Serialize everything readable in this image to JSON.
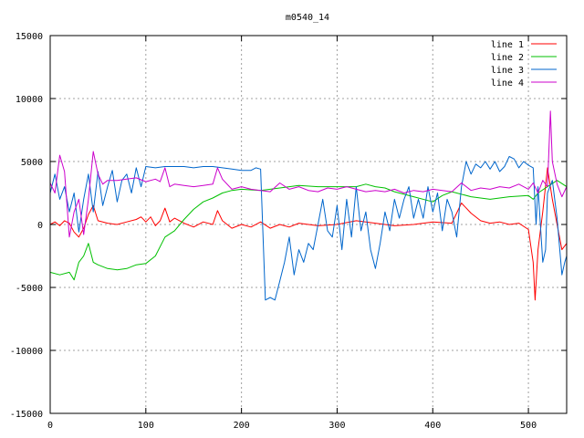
{
  "chart_data": {
    "type": "line",
    "title": "m0540_14",
    "xlim": [
      0,
      540
    ],
    "ylim": [
      -15000,
      15000
    ],
    "x_ticks": [
      0,
      100,
      200,
      300,
      400,
      500
    ],
    "y_ticks": [
      -15000,
      -10000,
      -5000,
      0,
      5000,
      10000,
      15000
    ],
    "grid": true,
    "legend_position": "top-right",
    "series": [
      {
        "name": "line 1",
        "color": "#ff0000",
        "points": [
          [
            0,
            0
          ],
          [
            5,
            200
          ],
          [
            10,
            -100
          ],
          [
            15,
            300
          ],
          [
            20,
            100
          ],
          [
            25,
            -600
          ],
          [
            30,
            -1000
          ],
          [
            35,
            -300
          ],
          [
            40,
            800
          ],
          [
            45,
            1500
          ],
          [
            50,
            300
          ],
          [
            60,
            100
          ],
          [
            70,
            0
          ],
          [
            80,
            200
          ],
          [
            90,
            400
          ],
          [
            95,
            600
          ],
          [
            100,
            200
          ],
          [
            105,
            600
          ],
          [
            110,
            -100
          ],
          [
            115,
            300
          ],
          [
            120,
            1300
          ],
          [
            125,
            200
          ],
          [
            130,
            500
          ],
          [
            140,
            100
          ],
          [
            150,
            -200
          ],
          [
            160,
            200
          ],
          [
            170,
            0
          ],
          [
            175,
            1100
          ],
          [
            180,
            300
          ],
          [
            190,
            -300
          ],
          [
            200,
            0
          ],
          [
            210,
            -200
          ],
          [
            220,
            200
          ],
          [
            230,
            -300
          ],
          [
            240,
            0
          ],
          [
            250,
            -200
          ],
          [
            260,
            100
          ],
          [
            280,
            -100
          ],
          [
            300,
            0
          ],
          [
            320,
            300
          ],
          [
            340,
            100
          ],
          [
            360,
            -100
          ],
          [
            380,
            0
          ],
          [
            400,
            200
          ],
          [
            420,
            100
          ],
          [
            430,
            1700
          ],
          [
            440,
            900
          ],
          [
            450,
            300
          ],
          [
            460,
            100
          ],
          [
            470,
            200
          ],
          [
            480,
            0
          ],
          [
            490,
            100
          ],
          [
            500,
            -400
          ],
          [
            505,
            -3000
          ],
          [
            507,
            -6000
          ],
          [
            510,
            -2000
          ],
          [
            515,
            1000
          ],
          [
            520,
            4500
          ],
          [
            525,
            2000
          ],
          [
            530,
            0
          ],
          [
            535,
            -2000
          ],
          [
            540,
            -1500
          ]
        ]
      },
      {
        "name": "line 2",
        "color": "#00c000",
        "points": [
          [
            0,
            -3800
          ],
          [
            10,
            -4000
          ],
          [
            20,
            -3800
          ],
          [
            25,
            -4400
          ],
          [
            30,
            -3000
          ],
          [
            35,
            -2500
          ],
          [
            40,
            -1500
          ],
          [
            45,
            -3000
          ],
          [
            50,
            -3200
          ],
          [
            60,
            -3500
          ],
          [
            70,
            -3600
          ],
          [
            80,
            -3500
          ],
          [
            90,
            -3200
          ],
          [
            100,
            -3100
          ],
          [
            110,
            -2500
          ],
          [
            120,
            -1000
          ],
          [
            130,
            -500
          ],
          [
            140,
            400
          ],
          [
            150,
            1200
          ],
          [
            160,
            1800
          ],
          [
            170,
            2100
          ],
          [
            180,
            2500
          ],
          [
            190,
            2700
          ],
          [
            200,
            2800
          ],
          [
            220,
            2700
          ],
          [
            240,
            2900
          ],
          [
            260,
            3100
          ],
          [
            280,
            3000
          ],
          [
            300,
            3000
          ],
          [
            320,
            3000
          ],
          [
            330,
            3200
          ],
          [
            340,
            3000
          ],
          [
            350,
            2900
          ],
          [
            360,
            2600
          ],
          [
            380,
            2200
          ],
          [
            400,
            1800
          ],
          [
            410,
            2300
          ],
          [
            420,
            2600
          ],
          [
            440,
            2200
          ],
          [
            460,
            2000
          ],
          [
            480,
            2200
          ],
          [
            500,
            2300
          ],
          [
            505,
            2000
          ],
          [
            510,
            2500
          ],
          [
            520,
            3000
          ],
          [
            530,
            3500
          ],
          [
            540,
            3000
          ]
        ]
      },
      {
        "name": "line 3",
        "color": "#0066cc",
        "points": [
          [
            0,
            2500
          ],
          [
            5,
            4000
          ],
          [
            10,
            2000
          ],
          [
            15,
            3000
          ],
          [
            20,
            1000
          ],
          [
            25,
            2500
          ],
          [
            30,
            -600
          ],
          [
            35,
            2000
          ],
          [
            40,
            4000
          ],
          [
            45,
            1000
          ],
          [
            50,
            4200
          ],
          [
            55,
            1500
          ],
          [
            60,
            3000
          ],
          [
            65,
            4300
          ],
          [
            70,
            1800
          ],
          [
            75,
            3500
          ],
          [
            80,
            4000
          ],
          [
            85,
            2500
          ],
          [
            90,
            4500
          ],
          [
            95,
            3000
          ],
          [
            100,
            4600
          ],
          [
            110,
            4500
          ],
          [
            120,
            4600
          ],
          [
            130,
            4600
          ],
          [
            140,
            4600
          ],
          [
            150,
            4500
          ],
          [
            160,
            4600
          ],
          [
            170,
            4600
          ],
          [
            180,
            4500
          ],
          [
            190,
            4400
          ],
          [
            200,
            4300
          ],
          [
            210,
            4300
          ],
          [
            215,
            4500
          ],
          [
            220,
            4400
          ],
          [
            225,
            -6000
          ],
          [
            230,
            -5800
          ],
          [
            235,
            -6000
          ],
          [
            240,
            -4500
          ],
          [
            245,
            -3000
          ],
          [
            250,
            -1000
          ],
          [
            255,
            -4000
          ],
          [
            260,
            -2000
          ],
          [
            265,
            -3000
          ],
          [
            270,
            -1500
          ],
          [
            275,
            -2000
          ],
          [
            280,
            0
          ],
          [
            285,
            2000
          ],
          [
            290,
            -500
          ],
          [
            295,
            -1000
          ],
          [
            300,
            1500
          ],
          [
            305,
            -2000
          ],
          [
            310,
            2000
          ],
          [
            315,
            -1000
          ],
          [
            320,
            3000
          ],
          [
            325,
            -500
          ],
          [
            330,
            1000
          ],
          [
            335,
            -2000
          ],
          [
            340,
            -3500
          ],
          [
            345,
            -1500
          ],
          [
            350,
            1000
          ],
          [
            355,
            -500
          ],
          [
            360,
            2000
          ],
          [
            365,
            500
          ],
          [
            370,
            2000
          ],
          [
            375,
            3000
          ],
          [
            380,
            500
          ],
          [
            385,
            2000
          ],
          [
            390,
            500
          ],
          [
            395,
            3000
          ],
          [
            400,
            1000
          ],
          [
            405,
            2500
          ],
          [
            410,
            -500
          ],
          [
            415,
            2000
          ],
          [
            420,
            1000
          ],
          [
            425,
            -1000
          ],
          [
            430,
            3000
          ],
          [
            435,
            5000
          ],
          [
            440,
            4000
          ],
          [
            445,
            4800
          ],
          [
            450,
            4500
          ],
          [
            455,
            5000
          ],
          [
            460,
            4400
          ],
          [
            465,
            5000
          ],
          [
            470,
            4200
          ],
          [
            475,
            4600
          ],
          [
            480,
            5400
          ],
          [
            485,
            5200
          ],
          [
            490,
            4500
          ],
          [
            495,
            5000
          ],
          [
            500,
            4700
          ],
          [
            505,
            4500
          ],
          [
            508,
            0
          ],
          [
            510,
            3000
          ],
          [
            515,
            -3000
          ],
          [
            518,
            -2000
          ],
          [
            520,
            2500
          ],
          [
            525,
            3500
          ],
          [
            530,
            500
          ],
          [
            535,
            -4000
          ],
          [
            538,
            -3000
          ],
          [
            540,
            -2500
          ]
        ]
      },
      {
        "name": "line 4",
        "color": "#cc00cc",
        "points": [
          [
            0,
            3300
          ],
          [
            5,
            2500
          ],
          [
            10,
            5500
          ],
          [
            15,
            4200
          ],
          [
            20,
            -1000
          ],
          [
            25,
            1000
          ],
          [
            30,
            2000
          ],
          [
            35,
            -800
          ],
          [
            40,
            2000
          ],
          [
            45,
            5800
          ],
          [
            50,
            4000
          ],
          [
            55,
            3200
          ],
          [
            60,
            3500
          ],
          [
            70,
            3500
          ],
          [
            80,
            3600
          ],
          [
            90,
            3700
          ],
          [
            100,
            3400
          ],
          [
            110,
            3600
          ],
          [
            115,
            3400
          ],
          [
            120,
            4500
          ],
          [
            125,
            3000
          ],
          [
            130,
            3200
          ],
          [
            140,
            3100
          ],
          [
            150,
            3000
          ],
          [
            160,
            3100
          ],
          [
            170,
            3200
          ],
          [
            175,
            4500
          ],
          [
            180,
            3600
          ],
          [
            190,
            2800
          ],
          [
            200,
            3000
          ],
          [
            210,
            2800
          ],
          [
            220,
            2700
          ],
          [
            230,
            2600
          ],
          [
            240,
            3300
          ],
          [
            250,
            2800
          ],
          [
            260,
            3000
          ],
          [
            270,
            2700
          ],
          [
            280,
            2600
          ],
          [
            290,
            2900
          ],
          [
            300,
            2800
          ],
          [
            310,
            3000
          ],
          [
            320,
            2800
          ],
          [
            330,
            2600
          ],
          [
            340,
            2700
          ],
          [
            350,
            2600
          ],
          [
            360,
            2800
          ],
          [
            370,
            2500
          ],
          [
            380,
            2700
          ],
          [
            390,
            2600
          ],
          [
            400,
            2800
          ],
          [
            410,
            2700
          ],
          [
            420,
            2600
          ],
          [
            430,
            3300
          ],
          [
            440,
            2700
          ],
          [
            450,
            2900
          ],
          [
            460,
            2800
          ],
          [
            470,
            3000
          ],
          [
            480,
            2900
          ],
          [
            490,
            3200
          ],
          [
            500,
            2800
          ],
          [
            505,
            3300
          ],
          [
            510,
            2500
          ],
          [
            515,
            3500
          ],
          [
            520,
            3000
          ],
          [
            523,
            9000
          ],
          [
            525,
            5000
          ],
          [
            530,
            3200
          ],
          [
            535,
            2200
          ],
          [
            540,
            3000
          ]
        ]
      }
    ]
  }
}
